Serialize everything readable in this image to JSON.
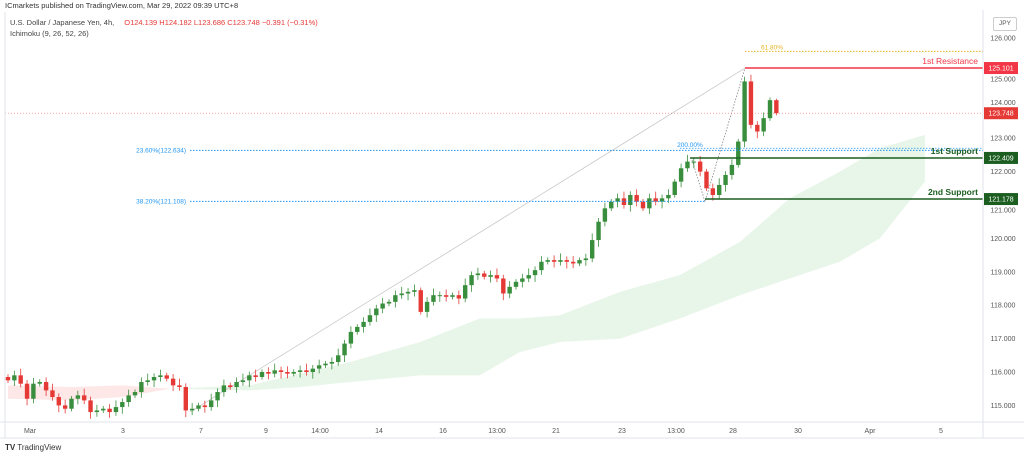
{
  "header": {
    "published": "ICmarkets published on TradingView.com, Mar 29, 2022 09:39 UTC+8",
    "symbol": "U.S. Dollar / Japanese Yen, 4h,",
    "indicator": "Ichimoku (9, 26, 52, 26)",
    "ohlc": "O124.139 H124.182 L123.686 C123.748 −0.391 (−0.31%)",
    "currency": "JPY"
  },
  "footer": {
    "brand_mark": "TV",
    "brand": "TradingView"
  },
  "colors": {
    "up": "#388e3c",
    "down": "#e53935",
    "resistance": "#f23645",
    "support": "#1b5e20",
    "fib": "#2196f3",
    "fib618": "#e6b422",
    "cloud_up": "#e8f5e9",
    "cloud_down": "#fde7e7"
  },
  "chart_data": {
    "type": "candlestick",
    "title": "U.S. Dollar / Japanese Yen, 4h",
    "ylim": [
      114.5,
      126.5
    ],
    "y_ticks": [
      "126.000",
      "125.000",
      "124.000",
      "123.000",
      "122.000",
      "121.000",
      "120.000",
      "119.000",
      "118.000",
      "117.000",
      "116.000",
      "115.000"
    ],
    "x_ticks": [
      "Mar",
      "3",
      "7",
      "9",
      "14:00",
      "14",
      "16",
      "13:00",
      "21",
      "23",
      "13:00",
      "28",
      "30",
      "Apr",
      "5"
    ],
    "closes": [
      115.75,
      115.9,
      115.65,
      115.2,
      115.65,
      115.7,
      115.45,
      115.25,
      115.0,
      114.9,
      115.2,
      115.3,
      115.15,
      114.8,
      114.85,
      114.9,
      114.8,
      114.95,
      115.1,
      115.3,
      115.4,
      115.7,
      115.75,
      115.85,
      115.9,
      115.8,
      115.6,
      115.55,
      114.85,
      114.9,
      115.0,
      114.95,
      115.15,
      115.4,
      115.6,
      115.55,
      115.7,
      115.75,
      115.9,
      115.85,
      116.0,
      115.95,
      116.05,
      116.0,
      115.95,
      116.0,
      116.05,
      116.0,
      116.1,
      116.2,
      116.25,
      116.3,
      116.5,
      116.85,
      117.2,
      117.35,
      117.5,
      117.7,
      117.9,
      118.05,
      118.1,
      118.3,
      118.35,
      118.4,
      118.45,
      117.8,
      118.1,
      118.3,
      118.3,
      118.25,
      118.3,
      118.2,
      118.6,
      118.9,
      118.95,
      118.85,
      118.9,
      118.8,
      118.35,
      118.55,
      118.7,
      118.8,
      118.9,
      119.05,
      119.3,
      119.35,
      119.3,
      119.35,
      119.3,
      119.25,
      119.35,
      119.4,
      119.95,
      120.5,
      120.9,
      121.1,
      121.2,
      121.0,
      121.3,
      121.1,
      120.9,
      121.2,
      121.1,
      121.2,
      121.3,
      121.7,
      122.1,
      122.3,
      122.3,
      122.0,
      121.5,
      121.3,
      121.6,
      121.9,
      122.2,
      122.9,
      124.7,
      123.4,
      123.2,
      123.6,
      124.139,
      123.748
    ],
    "last_candle": {
      "open": 124.139,
      "high": 124.182,
      "low": 123.686,
      "close": 123.748
    },
    "last_price": "123.748",
    "cloud_red": [
      [
        0,
        115.6,
        115.2
      ],
      [
        10,
        115.55,
        115.15
      ],
      [
        18,
        115.6,
        115.25
      ],
      [
        25.5,
        115.5,
        115.5
      ]
    ],
    "cloud_green": [
      [
        25.5,
        115.5,
        115.5
      ],
      [
        38.1,
        115.6,
        115.45
      ],
      [
        46,
        115.95,
        115.55
      ],
      [
        53.9,
        116.3,
        115.7
      ],
      [
        64.9,
        116.9,
        115.9
      ],
      [
        74.3,
        117.6,
        115.9
      ],
      [
        80.6,
        117.6,
        116.6
      ],
      [
        86.9,
        117.7,
        116.9
      ],
      [
        96.4,
        118.4,
        117.0
      ],
      [
        105.8,
        118.9,
        117.6
      ],
      [
        115.3,
        119.9,
        118.3
      ],
      [
        123.1,
        121.2,
        118.8
      ],
      [
        131,
        122.0,
        119.3
      ],
      [
        137.3,
        122.7,
        120.0
      ],
      [
        144.4,
        123.1,
        121.7
      ]
    ],
    "levels": [
      {
        "name": "fib-61.8",
        "label": "61.80%",
        "price": 125.6
      },
      {
        "name": "resistance-1",
        "label": "1st Resistance",
        "price": 125.101,
        "value": "125.101"
      },
      {
        "name": "fib-23.6",
        "label": "23.60%(122.634)",
        "price": 122.634
      },
      {
        "name": "fib-200",
        "label": "200.00%",
        "price": 122.7
      },
      {
        "name": "support-1",
        "label": "1st Support",
        "price": 122.409,
        "value": "122.409"
      },
      {
        "name": "fib-38.2",
        "label": "38.20%(121.108)",
        "price": 121.108
      },
      {
        "name": "support-2",
        "label": "2nd Support",
        "price": 121.178,
        "value": "121.178"
      }
    ]
  }
}
